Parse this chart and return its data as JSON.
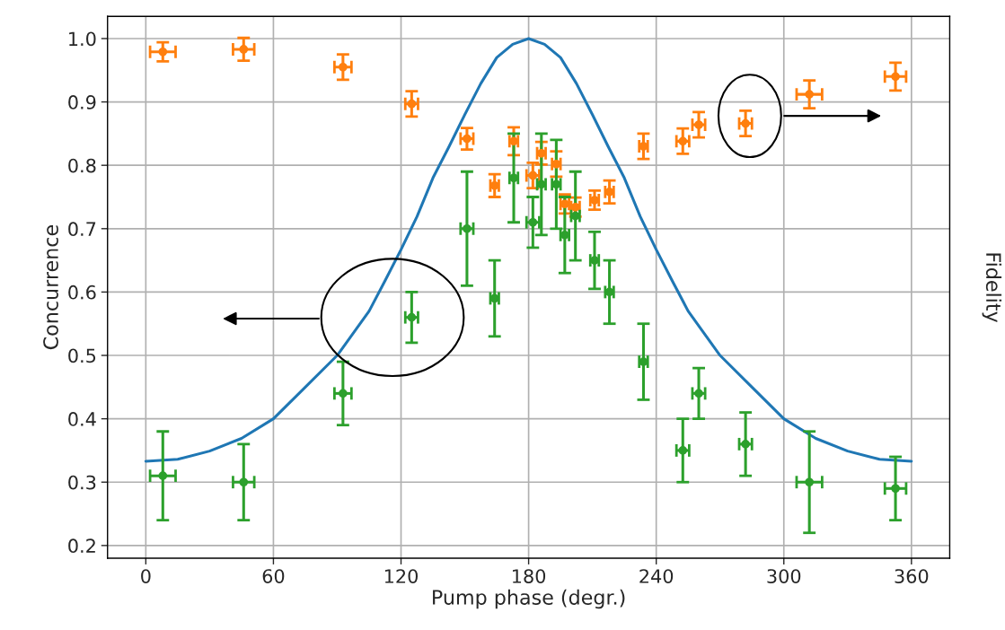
{
  "chart_data": {
    "type": "scatter",
    "xlabel": "Pump phase (degr.)",
    "ylabel": "Concurrence",
    "y2label": "Fidelity",
    "xlim": [
      -18,
      378
    ],
    "xticks": [
      0,
      60,
      120,
      180,
      240,
      300,
      360
    ],
    "ylim": [
      0.18,
      1.035
    ],
    "yticks": [
      0.2,
      0.3,
      0.4,
      0.5,
      0.6,
      0.7,
      0.8,
      0.9,
      {
        "value": 1.0,
        "label": "1.0"
      }
    ],
    "grid": true,
    "marker": "circle",
    "series": [
      {
        "type": "line",
        "color": "#1f77b4",
        "marker": "none",
        "line_style": "solid",
        "x": [
          0,
          15,
          30,
          45,
          60,
          75,
          90,
          97.5,
          105,
          112.5,
          120,
          127.5,
          135,
          142.5,
          150,
          157.5,
          165,
          172.5,
          180,
          187.5,
          195,
          202.5,
          210,
          217.5,
          225,
          232.5,
          240,
          247.5,
          255,
          262.5,
          270,
          285,
          300,
          315,
          330,
          345,
          360
        ],
        "values": [
          0.333,
          0.336,
          0.349,
          0.369,
          0.4,
          0.45,
          0.5,
          0.535,
          0.57,
          0.618,
          0.667,
          0.719,
          0.78,
          0.829,
          0.88,
          0.929,
          0.97,
          0.991,
          1.0,
          0.991,
          0.97,
          0.929,
          0.88,
          0.829,
          0.78,
          0.719,
          0.667,
          0.618,
          0.57,
          0.535,
          0.5,
          0.45,
          0.4,
          0.369,
          0.349,
          0.336,
          0.333
        ]
      },
      {
        "color": "#ff7f0e",
        "x": [
          8,
          46,
          92.7,
          125,
          151,
          164,
          173,
          182,
          186,
          193,
          197,
          202,
          211,
          218,
          234,
          252.5,
          260,
          282,
          312,
          352.5
        ],
        "values": [
          0.979,
          0.983,
          0.955,
          0.897,
          0.842,
          0.768,
          0.838,
          0.784,
          0.819,
          0.802,
          0.739,
          0.734,
          0.745,
          0.758,
          0.83,
          0.838,
          0.864,
          0.866,
          0.912,
          0.94
        ],
        "errors": [
          0.015,
          0.018,
          0.02,
          0.02,
          0.017,
          0.018,
          0.022,
          0.02,
          0.018,
          0.02,
          0.015,
          0.015,
          0.015,
          0.018,
          0.02,
          0.02,
          0.02,
          0.02,
          0.022,
          0.022
        ],
        "xerrors": [
          6,
          5,
          4,
          3,
          3,
          2,
          2,
          3,
          2,
          2,
          2,
          2,
          2,
          2,
          2,
          3,
          3,
          3,
          6,
          5
        ]
      },
      {
        "color": "#2ca02c",
        "x": [
          8,
          46,
          92.7,
          125,
          151,
          164,
          173,
          182,
          186,
          193,
          197,
          202,
          211,
          218,
          234,
          252.5,
          260,
          282,
          312,
          352.5
        ],
        "values": [
          0.31,
          0.3,
          0.44,
          0.56,
          0.7,
          0.59,
          0.78,
          0.71,
          0.77,
          0.77,
          0.69,
          0.72,
          0.65,
          0.6,
          0.49,
          0.35,
          0.44,
          0.36,
          0.3,
          0.29
        ],
        "errors": [
          0.07,
          0.06,
          0.05,
          0.04,
          0.09,
          0.06,
          0.07,
          0.04,
          0.08,
          0.07,
          0.06,
          0.07,
          0.045,
          0.05,
          0.06,
          0.05,
          0.04,
          0.05,
          0.08,
          0.05
        ],
        "xerrors": [
          6,
          5,
          4,
          3,
          3,
          2,
          2,
          3,
          2,
          2,
          2,
          2,
          2,
          2,
          2,
          3,
          3,
          3,
          6,
          5
        ]
      }
    ]
  }
}
